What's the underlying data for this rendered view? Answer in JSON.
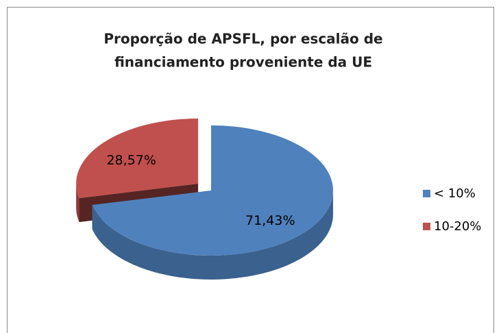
{
  "chart_data": {
    "type": "pie",
    "title": [
      "Proporção de APSFL, por escalão de",
      "financiamento proveniente da UE"
    ],
    "categories": [
      "< 10%",
      "10-20%"
    ],
    "values": [
      71.43,
      28.57
    ],
    "value_labels": [
      "71,43%",
      "28,57%"
    ],
    "colors": [
      "#4f81bd",
      "#c0504d"
    ],
    "legend": "right"
  }
}
